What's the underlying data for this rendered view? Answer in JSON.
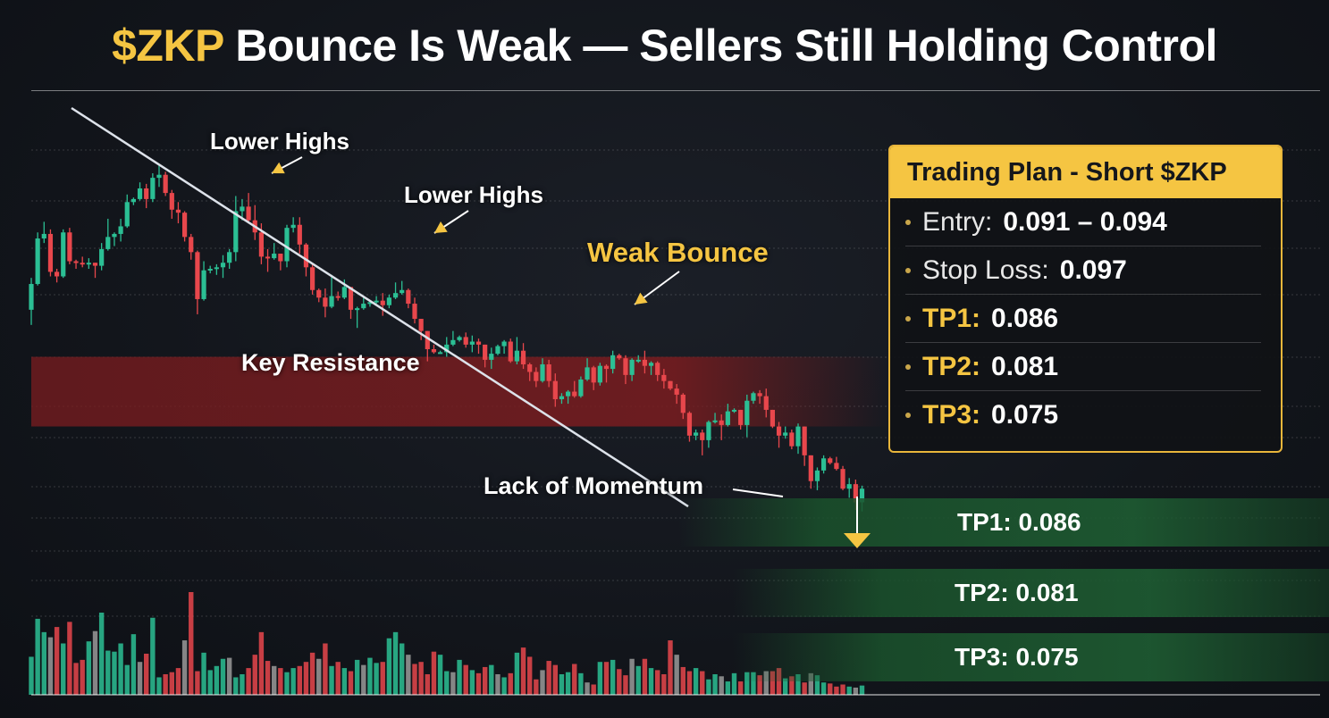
{
  "title": {
    "ticker": "$ZKP",
    "text": "Bounce Is Weak — Sellers Still Holding Control"
  },
  "annotations": {
    "lower_highs_1": "Lower Highs",
    "lower_highs_2": "Lower Highs",
    "weak_bounce": "Weak Bounce",
    "key_resistance": "Key Resistance",
    "lack_of_momentum": "Lack of Momentum"
  },
  "trading_plan": {
    "header": "Trading Plan - Short $ZKP",
    "entry_label": "Entry:",
    "entry_value": "0.091 – 0.094",
    "stop_label": "Stop Loss:",
    "stop_value": "0.097",
    "tp1_label": "TP1:",
    "tp1_value": "0.086",
    "tp2_label": "TP2:",
    "tp2_value": "0.081",
    "tp3_label": "TP3:",
    "tp3_value": "0.075"
  },
  "target_bands": {
    "tp1": "TP1: 0.086",
    "tp2": "TP2: 0.081",
    "tp3": "TP3: 0.075"
  },
  "colors": {
    "accent": "#f5c542",
    "bull": "#2bbf94",
    "bear": "#e8474c",
    "resistance_zone": "#7a1c1f",
    "target_zone": "#1e5c32"
  },
  "chart_data": {
    "type": "candlestick",
    "title": "$ZKP Bounce Is Weak — Sellers Still Holding Control",
    "xlabel": "",
    "ylabel": "",
    "ylim": [
      0.075,
      0.13
    ],
    "grid": true,
    "candles": [
      [
        0.1149,
        0.1166,
        0.1139,
        0.117
      ],
      [
        0.1166,
        0.1196,
        0.1165,
        0.12
      ],
      [
        0.1196,
        0.1199,
        0.1193,
        0.1207
      ],
      [
        0.1199,
        0.1174,
        0.1171,
        0.1202
      ],
      [
        0.1174,
        0.1171,
        0.1167,
        0.1176
      ],
      [
        0.1171,
        0.12,
        0.117,
        0.1202
      ],
      [
        0.12,
        0.1181,
        0.1179,
        0.1203
      ],
      [
        0.1181,
        0.118,
        0.1176,
        0.1182
      ],
      [
        0.118,
        0.1179,
        0.1177,
        0.1184
      ],
      [
        0.1179,
        0.118,
        0.1176,
        0.1183
      ],
      [
        0.118,
        0.1178,
        0.117,
        0.118
      ],
      [
        0.1178,
        0.1189,
        0.1175,
        0.1193
      ],
      [
        0.1189,
        0.1197,
        0.1188,
        0.1209
      ],
      [
        0.1197,
        0.1199,
        0.1191,
        0.12
      ],
      [
        0.1199,
        0.1204,
        0.1194,
        0.1209
      ],
      [
        0.1204,
        0.122,
        0.1203,
        0.1225
      ],
      [
        0.122,
        0.1222,
        0.1218,
        0.1223
      ],
      [
        0.1222,
        0.1229,
        0.1221,
        0.1233
      ],
      [
        0.1229,
        0.1222,
        0.1216,
        0.1232
      ],
      [
        0.1222,
        0.1236,
        0.122,
        0.1239
      ],
      [
        0.1236,
        0.1238,
        0.123,
        0.1244
      ],
      [
        0.1238,
        0.1226,
        0.1224,
        0.124
      ],
      [
        0.1226,
        0.1215,
        0.1209,
        0.1228
      ],
      [
        0.1215,
        0.1213,
        0.1206,
        0.122
      ],
      [
        0.1213,
        0.1197,
        0.1194,
        0.1214
      ],
      [
        0.1197,
        0.1187,
        0.1182,
        0.1199
      ],
      [
        0.1187,
        0.1156,
        0.1146,
        0.1188
      ],
      [
        0.1156,
        0.1175,
        0.1155,
        0.1181
      ],
      [
        0.1175,
        0.1176,
        0.1173,
        0.1178
      ],
      [
        0.1176,
        0.1177,
        0.1172,
        0.1179
      ],
      [
        0.1177,
        0.118,
        0.117,
        0.1185
      ],
      [
        0.118,
        0.1187,
        0.1176,
        0.1189
      ],
      [
        0.1187,
        0.1214,
        0.1181,
        0.1224
      ],
      [
        0.1214,
        0.1217,
        0.1208,
        0.1222
      ],
      [
        0.1217,
        0.1208,
        0.1206,
        0.1226
      ],
      [
        0.1208,
        0.12,
        0.1195,
        0.1218
      ],
      [
        0.12,
        0.1184,
        0.1179,
        0.1206
      ],
      [
        0.1184,
        0.1183,
        0.1174,
        0.1189
      ],
      [
        0.1183,
        0.1186,
        0.1182,
        0.1193
      ],
      [
        0.1186,
        0.1181,
        0.1175,
        0.1186
      ],
      [
        0.1181,
        0.1203,
        0.1177,
        0.1205
      ],
      [
        0.1203,
        0.1205,
        0.12,
        0.121
      ],
      [
        0.1205,
        0.1192,
        0.1186,
        0.121
      ],
      [
        0.1192,
        0.1177,
        0.1171,
        0.1193
      ],
      [
        0.1177,
        0.1162,
        0.1159,
        0.1179
      ],
      [
        0.1162,
        0.1157,
        0.1154,
        0.1163
      ],
      [
        0.1157,
        0.1151,
        0.1144,
        0.1163
      ],
      [
        0.1151,
        0.1158,
        0.115,
        0.1172
      ],
      [
        0.1158,
        0.1157,
        0.1155,
        0.1161
      ],
      [
        0.1157,
        0.1164,
        0.1156,
        0.1169
      ],
      [
        0.1164,
        0.1149,
        0.1143,
        0.1164
      ],
      [
        0.1149,
        0.115,
        0.1137,
        0.1151
      ],
      [
        0.115,
        0.1153,
        0.1149,
        0.1158
      ],
      [
        0.1153,
        0.1154,
        0.1151,
        0.1155
      ],
      [
        0.1154,
        0.1155,
        0.1153,
        0.1158
      ],
      [
        0.1155,
        0.1152,
        0.1145,
        0.116
      ],
      [
        0.1152,
        0.1157,
        0.115,
        0.1159
      ],
      [
        0.1157,
        0.116,
        0.1156,
        0.1167
      ],
      [
        0.116,
        0.1162,
        0.1159,
        0.1168
      ],
      [
        0.1162,
        0.1153,
        0.115,
        0.1163
      ],
      [
        0.1153,
        0.1143,
        0.114,
        0.1157
      ],
      [
        0.1143,
        0.1135,
        0.1129,
        0.1143
      ],
      [
        0.1135,
        0.1123,
        0.1115,
        0.1135
      ],
      [
        0.1123,
        0.1121,
        0.112,
        0.1126
      ],
      [
        0.1121,
        0.1121,
        0.112,
        0.1122
      ],
      [
        0.1121,
        0.1126,
        0.1118,
        0.1131
      ],
      [
        0.1126,
        0.1129,
        0.1125,
        0.1135
      ],
      [
        0.1129,
        0.1131,
        0.1128,
        0.1132
      ],
      [
        0.1131,
        0.1126,
        0.1124,
        0.1134
      ],
      [
        0.1126,
        0.1128,
        0.1121,
        0.1132
      ],
      [
        0.1128,
        0.1126,
        0.112,
        0.113
      ],
      [
        0.1126,
        0.1116,
        0.1111,
        0.1126
      ],
      [
        0.1116,
        0.112,
        0.111,
        0.1124
      ],
      [
        0.112,
        0.1125,
        0.1119,
        0.1126
      ],
      [
        0.1125,
        0.1128,
        0.112,
        0.1129
      ],
      [
        0.1128,
        0.1115,
        0.1114,
        0.113
      ],
      [
        0.1115,
        0.1122,
        0.1113,
        0.1131
      ],
      [
        0.1122,
        0.1113,
        0.111,
        0.1127
      ],
      [
        0.1113,
        0.1108,
        0.1102,
        0.1114
      ],
      [
        0.1108,
        0.1102,
        0.1098,
        0.1111
      ],
      [
        0.1102,
        0.1113,
        0.1101,
        0.1117
      ],
      [
        0.1113,
        0.1102,
        0.1098,
        0.1116
      ],
      [
        0.1102,
        0.109,
        0.1085,
        0.1107
      ],
      [
        0.109,
        0.1092,
        0.1087,
        0.1094
      ],
      [
        0.1092,
        0.1095,
        0.1087,
        0.1096
      ],
      [
        0.1095,
        0.1092,
        0.1091,
        0.1102
      ],
      [
        0.1092,
        0.1103,
        0.1091,
        0.1105
      ],
      [
        0.1103,
        0.1111,
        0.1102,
        0.1117
      ],
      [
        0.1111,
        0.1101,
        0.1096,
        0.1112
      ],
      [
        0.1101,
        0.1112,
        0.1099,
        0.1114
      ],
      [
        0.1112,
        0.111,
        0.1101,
        0.1113
      ],
      [
        0.111,
        0.1119,
        0.1107,
        0.1122
      ],
      [
        0.1119,
        0.1117,
        0.1116,
        0.112
      ],
      [
        0.1117,
        0.1106,
        0.11,
        0.1119
      ],
      [
        0.1106,
        0.1116,
        0.1102,
        0.1117
      ],
      [
        0.1116,
        0.1116,
        0.1114,
        0.1119
      ],
      [
        0.1116,
        0.1112,
        0.1107,
        0.1122
      ],
      [
        0.1112,
        0.1114,
        0.1106,
        0.1115
      ],
      [
        0.1114,
        0.1106,
        0.1102,
        0.1115
      ],
      [
        0.1106,
        0.1102,
        0.1097,
        0.111
      ],
      [
        0.1102,
        0.1097,
        0.1096,
        0.1102
      ],
      [
        0.1097,
        0.1093,
        0.1087,
        0.11
      ],
      [
        0.1093,
        0.1081,
        0.1077,
        0.1094
      ],
      [
        0.1081,
        0.1066,
        0.1062,
        0.1082
      ],
      [
        0.1066,
        0.1068,
        0.1063,
        0.107
      ],
      [
        0.1068,
        0.1063,
        0.1053,
        0.107
      ],
      [
        0.1063,
        0.1075,
        0.1058,
        0.1076
      ],
      [
        0.1075,
        0.1076,
        0.1074,
        0.1081
      ],
      [
        0.1076,
        0.1073,
        0.1063,
        0.108
      ],
      [
        0.1073,
        0.1082,
        0.1072,
        0.1087
      ],
      [
        0.1082,
        0.1083,
        0.1081,
        0.1084
      ],
      [
        0.1083,
        0.1073,
        0.107,
        0.1083
      ],
      [
        0.1073,
        0.1089,
        0.1065,
        0.1093
      ],
      [
        0.1089,
        0.1094,
        0.1087,
        0.1095
      ],
      [
        0.1094,
        0.1092,
        0.1087,
        0.1096
      ],
      [
        0.1092,
        0.1083,
        0.1078,
        0.1097
      ],
      [
        0.1083,
        0.1072,
        0.1071,
        0.1083
      ],
      [
        0.1072,
        0.1066,
        0.1058,
        0.1075
      ],
      [
        0.1066,
        0.1068,
        0.1064,
        0.1072
      ],
      [
        0.1068,
        0.1059,
        0.1057,
        0.107
      ],
      [
        0.1059,
        0.1072,
        0.1054,
        0.1074
      ],
      [
        0.1072,
        0.1053,
        0.1046,
        0.1072
      ],
      [
        0.1053,
        0.1036,
        0.1031,
        0.1053
      ],
      [
        0.1036,
        0.1043,
        0.103,
        0.1045
      ],
      [
        0.1043,
        0.1051,
        0.1041,
        0.1053
      ],
      [
        0.1051,
        0.1048,
        0.1047,
        0.1052
      ],
      [
        0.1048,
        0.1044,
        0.1043,
        0.1052
      ],
      [
        0.1044,
        0.1031,
        0.103,
        0.1046
      ],
      [
        0.1031,
        0.1034,
        0.1025,
        0.1038
      ],
      [
        0.1034,
        0.1022,
        0.1017,
        0.1037
      ],
      [
        0.1022,
        0.1031,
        0.1016,
        0.1033
      ]
    ],
    "volume": [
      0.37,
      0.74,
      0.61,
      0.56,
      0.66,
      0.5,
      0.71,
      0.31,
      0.34,
      0.52,
      0.62,
      0.8,
      0.43,
      0.42,
      0.5,
      0.29,
      0.59,
      0.32,
      0.4,
      0.75,
      0.17,
      0.2,
      0.22,
      0.26,
      0.53,
      1.0,
      0.23,
      0.41,
      0.24,
      0.28,
      0.35,
      0.36,
      0.17,
      0.2,
      0.26,
      0.39,
      0.61,
      0.33,
      0.28,
      0.26,
      0.22,
      0.26,
      0.28,
      0.32,
      0.41,
      0.35,
      0.5,
      0.28,
      0.32,
      0.26,
      0.23,
      0.34,
      0.29,
      0.36,
      0.31,
      0.32,
      0.55,
      0.61,
      0.5,
      0.39,
      0.3,
      0.32,
      0.2,
      0.42,
      0.39,
      0.23,
      0.22,
      0.34,
      0.29,
      0.24,
      0.21,
      0.27,
      0.29,
      0.2,
      0.17,
      0.21,
      0.41,
      0.46,
      0.37,
      0.15,
      0.24,
      0.33,
      0.29,
      0.2,
      0.22,
      0.3,
      0.21,
      0.12,
      0.1,
      0.32,
      0.32,
      0.34,
      0.25,
      0.19,
      0.35,
      0.28,
      0.35,
      0.26,
      0.24,
      0.2,
      0.53,
      0.39,
      0.27,
      0.23,
      0.26,
      0.23,
      0.15,
      0.2,
      0.18,
      0.13,
      0.21,
      0.13,
      0.22,
      0.22,
      0.19,
      0.23,
      0.23,
      0.26,
      0.16,
      0.18,
      0.2,
      0.12,
      0.21,
      0.19,
      0.12,
      0.11,
      0.08,
      0.1,
      0.08,
      0.07,
      0.09
    ],
    "resistance_zone": [
      0.1085,
      0.1105
    ],
    "targets": [
      0.086,
      0.081,
      0.075
    ],
    "trendline": [
      [
        0,
        0.1282
      ],
      [
        118,
        0.109
      ]
    ]
  }
}
